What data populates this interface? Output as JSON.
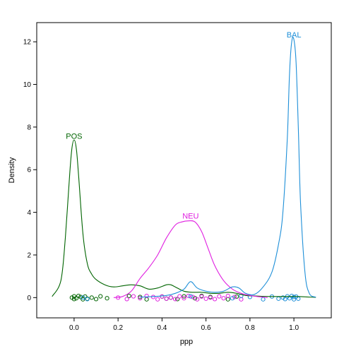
{
  "chart_data": {
    "type": "line",
    "title": "",
    "xlabel": "ppp",
    "ylabel": "Density",
    "xlim": [
      -0.17,
      1.17
    ],
    "ylim": [
      -0.95,
      12.9
    ],
    "x_ticks": [
      0.0,
      0.2,
      0.4,
      0.6,
      0.8,
      1.0
    ],
    "x_tick_labels": [
      "0.0",
      "0.2",
      "0.4",
      "0.6",
      "0.8",
      "1.0"
    ],
    "y_ticks": [
      0,
      2,
      4,
      6,
      8,
      10,
      12
    ],
    "y_tick_labels": [
      "0",
      "2",
      "4",
      "6",
      "8",
      "10",
      "12"
    ],
    "grid": false,
    "legend": "direct labels at curve peaks",
    "series": [
      {
        "name": "POS",
        "color": "#006400",
        "label_at": [
          0.0,
          7.45
        ],
        "x": [
          -0.1,
          -0.06,
          -0.04,
          -0.02,
          -0.01,
          0.0,
          0.01,
          0.02,
          0.04,
          0.06,
          0.08,
          0.1,
          0.14,
          0.18,
          0.22,
          0.26,
          0.3,
          0.34,
          0.38,
          0.42,
          0.44,
          0.46,
          0.5,
          0.54,
          0.58,
          0.62,
          0.66,
          0.7,
          0.74,
          0.78,
          0.82,
          0.86,
          0.9,
          0.94,
          0.98,
          1.02,
          1.06,
          1.1
        ],
        "y": [
          0.05,
          0.8,
          2.8,
          5.8,
          7.0,
          7.4,
          7.0,
          5.8,
          3.0,
          1.6,
          1.1,
          0.85,
          0.6,
          0.5,
          0.55,
          0.6,
          0.55,
          0.4,
          0.45,
          0.6,
          0.6,
          0.5,
          0.3,
          0.25,
          0.25,
          0.2,
          0.2,
          0.25,
          0.2,
          0.1,
          0.08,
          0.06,
          0.05,
          0.05,
          0.05,
          0.05,
          0.03,
          0.01
        ]
      },
      {
        "name": "NEU",
        "color": "#e020e0",
        "label_at": [
          0.53,
          3.7
        ],
        "x": [
          0.18,
          0.22,
          0.26,
          0.3,
          0.34,
          0.38,
          0.42,
          0.46,
          0.49,
          0.52,
          0.55,
          0.58,
          0.61,
          0.64,
          0.68,
          0.72,
          0.76,
          0.8,
          0.84,
          0.88
        ],
        "y": [
          0.0,
          0.05,
          0.3,
          0.9,
          1.4,
          2.0,
          2.8,
          3.4,
          3.55,
          3.6,
          3.55,
          3.1,
          2.3,
          1.5,
          0.8,
          0.4,
          0.2,
          0.1,
          0.04,
          0.0
        ]
      },
      {
        "name": "BAL",
        "color": "#1e8fd8",
        "label_at": [
          1.0,
          12.2
        ],
        "x": [
          0.3,
          0.36,
          0.42,
          0.46,
          0.5,
          0.53,
          0.56,
          0.6,
          0.64,
          0.68,
          0.72,
          0.75,
          0.78,
          0.82,
          0.86,
          0.9,
          0.93,
          0.95,
          0.97,
          0.98,
          0.99,
          1.0,
          1.01,
          1.02,
          1.03,
          1.05,
          1.07,
          1.1
        ],
        "y": [
          0.02,
          0.05,
          0.1,
          0.2,
          0.4,
          0.75,
          0.45,
          0.3,
          0.25,
          0.3,
          0.5,
          0.45,
          0.2,
          0.15,
          0.5,
          1.2,
          2.5,
          4.0,
          7.5,
          10.5,
          12.0,
          12.1,
          11.0,
          8.0,
          4.5,
          1.2,
          0.2,
          0.02
        ]
      }
    ],
    "rug_points": [
      {
        "series": "POS",
        "x": [
          -0.01,
          0.0,
          0.0,
          0.01,
          0.02,
          0.03,
          0.04,
          0.05,
          0.06,
          0.08,
          0.1,
          0.12,
          0.15,
          0.25,
          0.3,
          0.33,
          0.4,
          0.42,
          0.44,
          0.47,
          0.5,
          0.55,
          0.58,
          0.62,
          0.7,
          0.74
        ]
      },
      {
        "series": "NEU",
        "x": [
          0.2,
          0.24,
          0.27,
          0.3,
          0.33,
          0.36,
          0.38,
          0.4,
          0.42,
          0.44,
          0.46,
          0.48,
          0.5,
          0.52,
          0.54,
          0.56,
          0.58,
          0.6,
          0.62,
          0.64,
          0.66,
          0.68,
          0.7,
          0.73,
          0.76
        ]
      },
      {
        "series": "BAL",
        "x": [
          0.04,
          0.06,
          0.53,
          0.72,
          0.76,
          0.8,
          0.86,
          0.9,
          0.93,
          0.95,
          0.96,
          0.97,
          0.98,
          0.99,
          1.0,
          1.0,
          1.01,
          1.02
        ]
      }
    ]
  }
}
